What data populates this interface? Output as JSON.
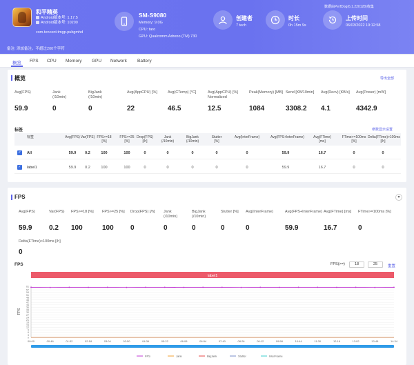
{
  "header": {
    "app_name": "和平精英",
    "android_version": "Android版本号: 1.17.5",
    "android_version_code": "Android版本号: 10200",
    "package": "com.tencent.tmgp.pubgmhd",
    "device_name": "SM-S9080",
    "memory": "Memory: 9.0G",
    "cpu": "CPU: taro",
    "gpu": "GPU: Qualcomm Adreno (TM) 730",
    "creator_label": "创建者",
    "creator_value": "7 tech",
    "duration_label": "时长",
    "duration_value": "0h 15m 9s",
    "upload_label": "上传时间",
    "upload_value": "06/03/2022 19:12:58",
    "top_right_note": "数据由PerfDog(6.1.220128)收集",
    "note": "备注: 添加备注，不超过200个字符"
  },
  "tabs": [
    "概览",
    "FPS",
    "CPU",
    "Memory",
    "GPU",
    "Network",
    "Battery"
  ],
  "overview": {
    "title": "概览",
    "export_label": "导出全部",
    "metrics": [
      {
        "label": "Avg(FPS)",
        "value": "59.9"
      },
      {
        "label": "Jank\n(/10min)",
        "value": "0"
      },
      {
        "label": "BigJank\n(/10min)",
        "value": "0"
      },
      {
        "label": "Avg(AppCPU) [%]",
        "value": "22"
      },
      {
        "label": "Avg(CTemp) [°C]",
        "value": "46.5"
      },
      {
        "label": "Avg(AppCPU) [%]\nNormalized",
        "value": "12.5"
      },
      {
        "label": "Peak(Memory) [MB]",
        "value": "1084"
      },
      {
        "label": "Send [KB/10min]",
        "value": "3308.2"
      },
      {
        "label": "Avg(Recv) [KB/s]",
        "value": "4.1"
      },
      {
        "label": "Avg(Power) [mW]",
        "value": "4342.9"
      }
    ],
    "labels_title": "标签",
    "labels_link": "参数显示设置",
    "table_headers": [
      "标签",
      "Avg(FPS)",
      "Var(FPS)",
      "FPS>=18\n[%]",
      "FPS>=25\n[%]",
      "Drop(FPS)\n[/h]",
      "Jank\n(/10min)",
      "BigJank\n(/10min)",
      "Stutter\n[%]",
      "Avg(InterFrame)",
      "Avg(FPS+InterFrame)",
      "Avg(FTime)\n[ms]",
      "FTime>=100ms\n[%]",
      "Delta(FTime)>100ms\n[/h]"
    ],
    "rows": [
      {
        "name": "All",
        "cells": [
          "59.9",
          "0.2",
          "100",
          "100",
          "0",
          "0",
          "0",
          "0",
          "0",
          "59.9",
          "16.7",
          "0",
          "0"
        ]
      },
      {
        "name": "label1",
        "cells": [
          "59.9",
          "0.2",
          "100",
          "100",
          "0",
          "0",
          "0",
          "0",
          "0",
          "59.9",
          "16.7",
          "0",
          "0"
        ]
      }
    ]
  },
  "fps_section": {
    "title": "FPS",
    "metrics": [
      {
        "label": "Avg(FPS)",
        "value": "59.9"
      },
      {
        "label": "Var(FPS)",
        "value": "0.2"
      },
      {
        "label": "FPS>=18 [%]",
        "value": "100"
      },
      {
        "label": "FPS>=25 [%]",
        "value": "100"
      },
      {
        "label": "Drop(FPS) [/h]",
        "value": "0"
      },
      {
        "label": "Jank\n(/10min)",
        "value": "0"
      },
      {
        "label": "BigJank\n(/10min)",
        "value": "0"
      },
      {
        "label": "Stutter [%]",
        "value": "0"
      },
      {
        "label": "Avg(InterFrame)",
        "value": "0"
      },
      {
        "label": "Avg(FPS+InterFrame)",
        "value": "59.9"
      },
      {
        "label": "Avg(FTime) [ms]",
        "value": "16.7"
      },
      {
        "label": "FTime>=100ms [%]",
        "value": "0"
      },
      {
        "label": "Delta(FTime)>100ms [/h]",
        "value": "0"
      }
    ],
    "chart_label": "FPS",
    "fps_ctrl_label": "FPS(>=)",
    "fps_threshold_1": "18",
    "fps_threshold_2": "25",
    "reset_label": "重置",
    "band_label": "label1"
  },
  "colors": {
    "accent": "#5b63e8",
    "fps_line": "#c23bd4",
    "jank": "#f0a030",
    "bigjank": "#e84a4a",
    "stutter": "#7a8cc8",
    "interframe": "#3ccfcf",
    "label_band": "#ec5a6a",
    "scrollbar": "#2f9be8"
  },
  "chart_data": {
    "type": "line",
    "title": "",
    "xlabel": "",
    "ylabel": "FPS",
    "x": [
      "00:00",
      "00:46",
      "01:32",
      "02:18",
      "03:04",
      "03:50",
      "04:36",
      "05:22",
      "06:08",
      "06:54",
      "07:40",
      "08:26",
      "09:12",
      "09:58",
      "10:44",
      "11:30",
      "12:16",
      "13:02",
      "13:48",
      "14:34"
    ],
    "ylim": [
      0,
      62
    ],
    "yticks": [
      0,
      3,
      6,
      9,
      12,
      15,
      18,
      21,
      24,
      27,
      30,
      33,
      36,
      39,
      42,
      45,
      48,
      51,
      54,
      57,
      61
    ],
    "series": [
      {
        "name": "FPS",
        "values": [
          60,
          59.8,
          60,
          59.9,
          60,
          59.8,
          60,
          60,
          59.9,
          60,
          60,
          59.8,
          60,
          59.9,
          60,
          60,
          59.9,
          60,
          59.8,
          60
        ]
      },
      {
        "name": "Jank",
        "values": [
          0,
          0,
          0,
          0,
          0,
          0,
          0,
          0,
          0,
          0,
          0,
          0,
          0,
          0,
          0,
          0,
          0,
          0,
          0,
          0
        ]
      },
      {
        "name": "BigJank",
        "values": [
          0,
          0,
          0,
          0,
          0,
          0,
          0,
          0,
          0,
          0,
          0,
          0,
          0,
          0,
          0,
          0,
          0,
          0,
          0,
          0
        ]
      },
      {
        "name": "Stutter",
        "values": [
          0,
          0,
          0,
          0,
          0,
          0,
          0,
          0,
          0,
          0,
          0,
          0,
          0,
          0,
          0,
          0,
          0,
          0,
          0,
          0
        ]
      },
      {
        "name": "InterFrame",
        "values": [
          0,
          0,
          0,
          0,
          0,
          0,
          0,
          0,
          0,
          0,
          0,
          0,
          0,
          0,
          0,
          0,
          0,
          0,
          0,
          0
        ]
      }
    ],
    "legend": [
      "FPS",
      "Jank",
      "BigJank",
      "Stutter",
      "InterFrame"
    ],
    "legend_position": "bottom",
    "grid": true
  }
}
